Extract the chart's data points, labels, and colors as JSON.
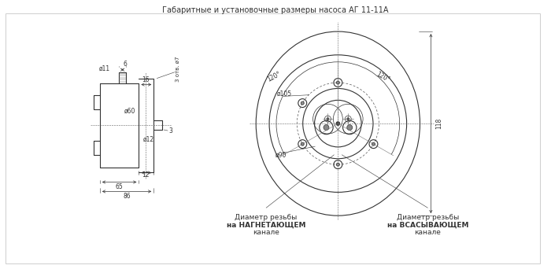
{
  "title": "Габаритные и установочные размеры насоса АГ 11-11А",
  "bg_color": "#ffffff",
  "line_color": "#333333",
  "text_color": "#333333",
  "fig_width": 7.0,
  "fig_height": 3.42,
  "dpi": 100,
  "label_left_nag": [
    "Диаметр резьбы",
    "на НАГНЕТАЮЩЕМ",
    "канале"
  ],
  "label_right_vsas": [
    "Диаметр резьбы",
    "на ВСАСЫВАЮЩЕМ",
    "канале"
  ],
  "dims_left": {
    "d11": "ø11",
    "d6": "6",
    "d7": "3 отв. ø7",
    "d16": "16",
    "d60": "ø60",
    "d12_shaft": "ø12",
    "dim3": "3",
    "dim12": "12",
    "dim65": "65",
    "dim86": "86"
  },
  "dims_right": {
    "d105": "ø105",
    "d90": "ø90",
    "dim118": "118",
    "ang120a": "120°",
    "ang120b": "120°"
  }
}
